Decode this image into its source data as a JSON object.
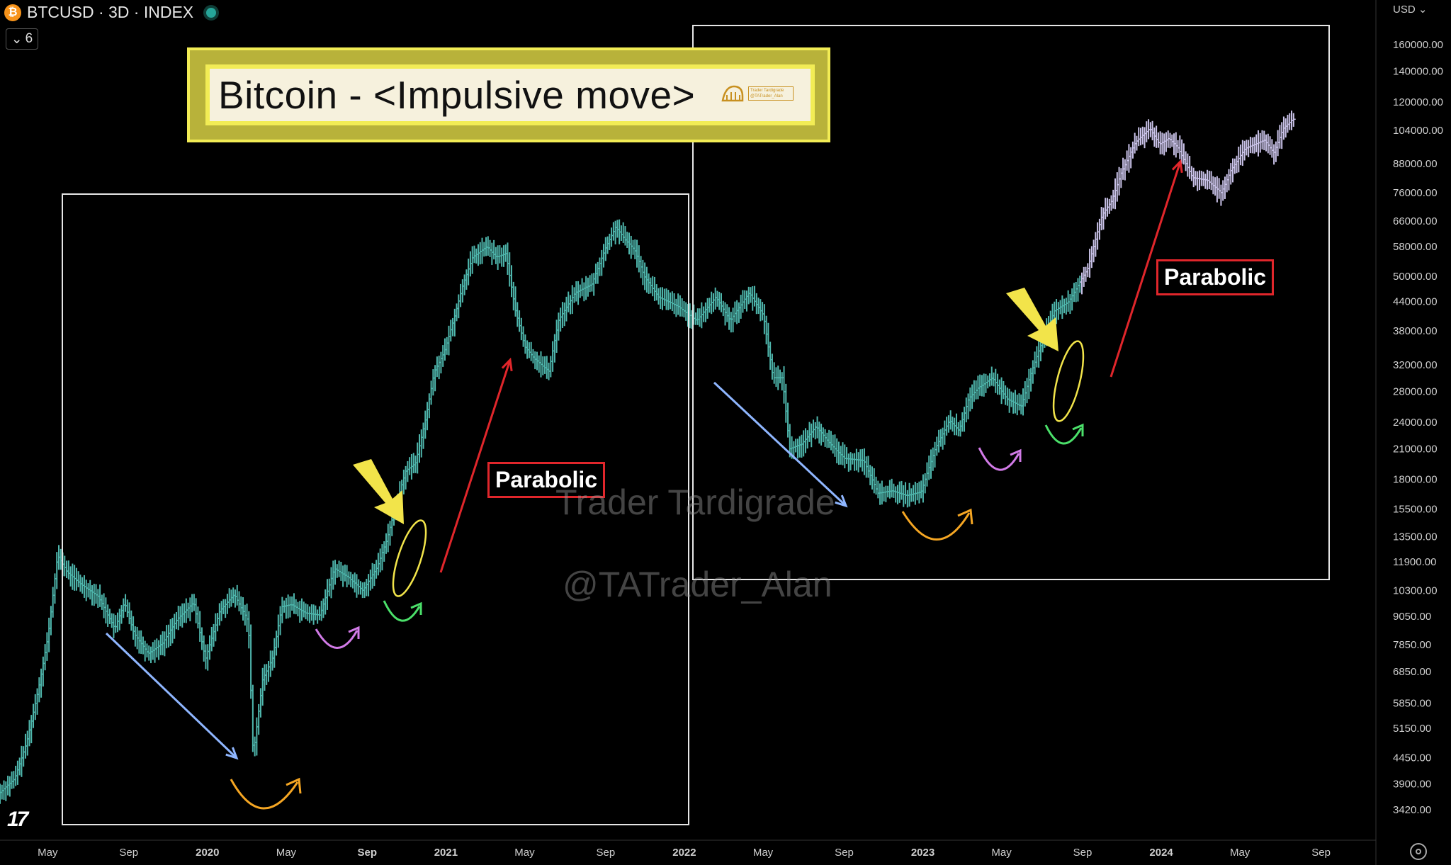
{
  "header": {
    "symbol": "BTCUSD · 3D · INDEX",
    "interval_badge": "6",
    "currency": "USD"
  },
  "title": {
    "text": "Bitcoin - <Impulsive move>",
    "logo_text_1": "Trader Tardigrade",
    "logo_text_2": "@TATrader_Alan"
  },
  "labels": {
    "parabolic_1": "Parabolic",
    "parabolic_2": "Parabolic"
  },
  "watermarks": {
    "line1": "Trader Tardigrade",
    "line2": "@TATrader_Alan"
  },
  "colors": {
    "bar_2019_2023": "#4fb7ad",
    "bar_2023_2024": "#c9c2e8",
    "arrow_down": "#8fb6ff",
    "arrow_up": "#e0262b",
    "arc_orange": "#f5a623",
    "arc_purple": "#d27be8",
    "arc_green": "#4be06a",
    "pointer_yellow": "#f2e44a",
    "title_yellow": "#f2ec55"
  },
  "chart_data": {
    "type": "line",
    "title": "",
    "xlabel": "",
    "ylabel": "",
    "y_scale": "log",
    "ylim": [
      3000,
      180000
    ],
    "y_ticks": [
      {
        "v": 160000,
        "label": "160000.00"
      },
      {
        "v": 140000,
        "label": "140000.00"
      },
      {
        "v": 120000,
        "label": "120000.00"
      },
      {
        "v": 104000,
        "label": "104000.00"
      },
      {
        "v": 88000,
        "label": "88000.00"
      },
      {
        "v": 76000,
        "label": "76000.00"
      },
      {
        "v": 66000,
        "label": "66000.00"
      },
      {
        "v": 58000,
        "label": "58000.00"
      },
      {
        "v": 50000,
        "label": "50000.00"
      },
      {
        "v": 44000,
        "label": "44000.00"
      },
      {
        "v": 38000,
        "label": "38000.00"
      },
      {
        "v": 32000,
        "label": "32000.00"
      },
      {
        "v": 28000,
        "label": "28000.00"
      },
      {
        "v": 24000,
        "label": "24000.00"
      },
      {
        "v": 21000,
        "label": "21000.00"
      },
      {
        "v": 18000,
        "label": "18000.00"
      },
      {
        "v": 15500,
        "label": "15500.00"
      },
      {
        "v": 13500,
        "label": "13500.00"
      },
      {
        "v": 11900,
        "label": "11900.00"
      },
      {
        "v": 10300,
        "label": "10300.00"
      },
      {
        "v": 9050,
        "label": "9050.00"
      },
      {
        "v": 7850,
        "label": "7850.00"
      },
      {
        "v": 6850,
        "label": "6850.00"
      },
      {
        "v": 5850,
        "label": "5850.00"
      },
      {
        "v": 5150,
        "label": "5150.00"
      },
      {
        "v": 4450,
        "label": "4450.00"
      },
      {
        "v": 3900,
        "label": "3900.00"
      },
      {
        "v": 3420,
        "label": "3420.00"
      }
    ],
    "x_ticks": [
      {
        "t": 2018.33,
        "label": "May",
        "bold": false
      },
      {
        "t": 2018.67,
        "label": "Sep",
        "bold": false
      },
      {
        "t": 2019.0,
        "label": "2020",
        "bold": true
      },
      {
        "t": 2019.33,
        "label": "May",
        "bold": false
      },
      {
        "t": 2019.67,
        "label": "Sep",
        "bold": true
      },
      {
        "t": 2020.0,
        "label": "2021",
        "bold": true
      },
      {
        "t": 2020.33,
        "label": "May",
        "bold": false
      },
      {
        "t": 2020.67,
        "label": "Sep",
        "bold": false
      },
      {
        "t": 2021.0,
        "label": "2022",
        "bold": true
      },
      {
        "t": 2021.33,
        "label": "May",
        "bold": false
      },
      {
        "t": 2021.67,
        "label": "Sep",
        "bold": false
      },
      {
        "t": 2022.0,
        "label": "2023",
        "bold": true
      },
      {
        "t": 2022.33,
        "label": "May",
        "bold": false
      },
      {
        "t": 2022.67,
        "label": "Sep",
        "bold": false
      },
      {
        "t": 2023.0,
        "label": "2024",
        "bold": true
      },
      {
        "t": 2023.33,
        "label": "May",
        "bold": false
      },
      {
        "t": 2023.67,
        "label": "Sep",
        "bold": false
      }
    ],
    "xlim": [
      2018.13,
      2023.9
    ],
    "series": [
      {
        "points": [
          [
            2018.13,
            3700
          ],
          [
            2018.2,
            4000
          ],
          [
            2018.25,
            4800
          ],
          [
            2018.3,
            6300
          ],
          [
            2018.34,
            8200
          ],
          [
            2018.38,
            12300
          ],
          [
            2018.42,
            11300
          ],
          [
            2018.48,
            10600
          ],
          [
            2018.55,
            10000
          ],
          [
            2018.62,
            8500
          ],
          [
            2018.66,
            9700
          ],
          [
            2018.7,
            8300
          ],
          [
            2018.76,
            7500
          ],
          [
            2018.82,
            7900
          ],
          [
            2018.88,
            8900
          ],
          [
            2018.95,
            9700
          ],
          [
            2019.0,
            7300
          ],
          [
            2019.06,
            9300
          ],
          [
            2019.12,
            10100
          ],
          [
            2019.18,
            8800
          ],
          [
            2019.2,
            4500
          ],
          [
            2019.24,
            6600
          ],
          [
            2019.28,
            7300
          ],
          [
            2019.32,
            9500
          ],
          [
            2019.36,
            9600
          ],
          [
            2019.42,
            9200
          ],
          [
            2019.48,
            9100
          ],
          [
            2019.54,
            11500
          ],
          [
            2019.6,
            11000
          ],
          [
            2019.66,
            10300
          ],
          [
            2019.72,
            11600
          ],
          [
            2019.76,
            13300
          ],
          [
            2019.8,
            15900
          ],
          [
            2019.84,
            18800
          ],
          [
            2019.88,
            19500
          ],
          [
            2019.92,
            24000
          ],
          [
            2019.96,
            31000
          ],
          [
            2020.0,
            34000
          ],
          [
            2020.04,
            40000
          ],
          [
            2020.08,
            48000
          ],
          [
            2020.12,
            55000
          ],
          [
            2020.18,
            58000
          ],
          [
            2020.22,
            55000
          ],
          [
            2020.26,
            56000
          ],
          [
            2020.3,
            42000
          ],
          [
            2020.34,
            35000
          ],
          [
            2020.38,
            33000
          ],
          [
            2020.44,
            31000
          ],
          [
            2020.48,
            40000
          ],
          [
            2020.55,
            46000
          ],
          [
            2020.62,
            48000
          ],
          [
            2020.68,
            58000
          ],
          [
            2020.72,
            64000
          ],
          [
            2020.76,
            60000
          ],
          [
            2020.8,
            57000
          ],
          [
            2020.84,
            50000
          ],
          [
            2020.9,
            45000
          ],
          [
            2020.98,
            43000
          ],
          [
            2021.06,
            40000
          ],
          [
            2021.14,
            45000
          ],
          [
            2021.2,
            40000
          ],
          [
            2021.28,
            46000
          ],
          [
            2021.34,
            41000
          ],
          [
            2021.38,
            30000
          ],
          [
            2021.42,
            30000
          ],
          [
            2021.45,
            21000
          ],
          [
            2021.5,
            21500
          ],
          [
            2021.56,
            23500
          ],
          [
            2021.62,
            21500
          ],
          [
            2021.68,
            20000
          ],
          [
            2021.76,
            19800
          ],
          [
            2021.82,
            16800
          ],
          [
            2021.88,
            17000
          ],
          [
            2021.94,
            16600
          ],
          [
            2022.0,
            16900
          ],
          [
            2022.06,
            21000
          ],
          [
            2022.12,
            24200
          ],
          [
            2022.16,
            23000
          ],
          [
            2022.2,
            27000
          ],
          [
            2022.24,
            28500
          ],
          [
            2022.3,
            30000
          ],
          [
            2022.36,
            27000
          ],
          [
            2022.42,
            26000
          ],
          [
            2022.46,
            30500
          ],
          [
            2022.5,
            35000
          ],
          [
            2022.56,
            42000
          ],
          [
            2022.62,
            44000
          ],
          [
            2022.7,
            52000
          ],
          [
            2022.76,
            68000
          ],
          [
            2022.8,
            73000
          ],
          [
            2022.84,
            84000
          ],
          [
            2022.9,
            98000
          ],
          [
            2022.96,
            105000
          ],
          [
            2023.0,
            97000
          ],
          [
            2023.04,
            100000
          ],
          [
            2023.08,
            95000
          ],
          [
            2023.14,
            82000
          ],
          [
            2023.2,
            81000
          ],
          [
            2023.26,
            76000
          ],
          [
            2023.3,
            85000
          ],
          [
            2023.36,
            95000
          ],
          [
            2023.44,
            99000
          ],
          [
            2023.48,
            93000
          ],
          [
            2023.52,
            105000
          ],
          [
            2023.56,
            110000
          ]
        ]
      }
    ]
  }
}
